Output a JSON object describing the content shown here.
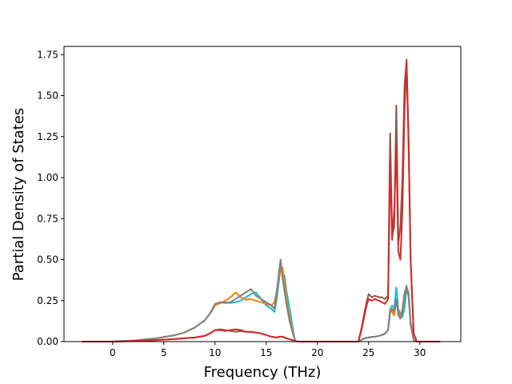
{
  "chart_data": {
    "type": "line",
    "title": "",
    "xlabel": "Frequency (THz)",
    "ylabel": "Partial Density of States",
    "xlim": [
      -4.75,
      34
    ],
    "ylim": [
      0,
      1.8
    ],
    "xticks": [
      0,
      5,
      10,
      15,
      20,
      25,
      30
    ],
    "yticks": [
      0.0,
      0.25,
      0.5,
      0.75,
      1.0,
      1.25,
      1.5,
      1.75
    ],
    "ytick_labels": [
      "0.00",
      "0.25",
      "0.50",
      "0.75",
      "1.00",
      "1.25",
      "1.50",
      "1.75"
    ],
    "grid": false,
    "legend": "none",
    "series": [
      {
        "color": "#17becf",
        "x": [
          -3,
          0,
          2,
          4,
          6,
          7,
          8,
          9,
          9.5,
          10,
          10.5,
          11,
          11.5,
          12,
          12.5,
          13,
          13.5,
          14,
          14.5,
          15,
          15.5,
          15.8,
          16,
          16.2,
          16.4,
          16.6,
          16.8,
          17,
          17.3,
          17.6,
          17.8,
          18,
          24,
          24.3,
          24.6,
          25,
          25.3,
          25.6,
          26,
          26.3,
          26.6,
          26.9,
          27.1,
          27.3,
          27.5,
          27.7,
          27.9,
          28.1,
          28.3,
          28.5,
          28.7,
          28.9,
          29.1,
          29.4,
          29.7,
          30,
          32
        ],
        "y": [
          0,
          0,
          0.006,
          0.018,
          0.038,
          0.055,
          0.085,
          0.13,
          0.17,
          0.225,
          0.235,
          0.24,
          0.235,
          0.24,
          0.25,
          0.27,
          0.29,
          0.3,
          0.26,
          0.22,
          0.2,
          0.18,
          0.25,
          0.35,
          0.45,
          0.42,
          0.4,
          0.3,
          0.2,
          0.08,
          0.01,
          0,
          0,
          0.01,
          0.02,
          0.025,
          0.028,
          0.03,
          0.035,
          0.04,
          0.05,
          0.07,
          0.2,
          0.22,
          0.2,
          0.33,
          0.2,
          0.17,
          0.15,
          0.2,
          0.32,
          0.28,
          0.1,
          0.01,
          0,
          0,
          0
        ]
      },
      {
        "color": "#ff7f0e",
        "x": [
          -3,
          0,
          2,
          4,
          6,
          7,
          8,
          9,
          9.5,
          10,
          10.5,
          11,
          11.5,
          12,
          12.5,
          13,
          13.5,
          14,
          14.5,
          15,
          15.5,
          15.8,
          16,
          16.2,
          16.4,
          16.6,
          16.8,
          17,
          17.3,
          17.6,
          17.8,
          18,
          24,
          24.3,
          24.6,
          25,
          25.3,
          25.6,
          26,
          26.3,
          26.6,
          26.9,
          27.1,
          27.3,
          27.5,
          27.7,
          27.9,
          28.1,
          28.3,
          28.5,
          28.7,
          28.9,
          29.1,
          29.4,
          29.7,
          30,
          32
        ],
        "y": [
          0,
          0,
          0.006,
          0.018,
          0.038,
          0.055,
          0.085,
          0.13,
          0.17,
          0.22,
          0.235,
          0.25,
          0.27,
          0.3,
          0.27,
          0.255,
          0.26,
          0.25,
          0.24,
          0.23,
          0.22,
          0.24,
          0.3,
          0.38,
          0.43,
          0.45,
          0.35,
          0.25,
          0.15,
          0.06,
          0.01,
          0,
          0,
          0.01,
          0.02,
          0.025,
          0.028,
          0.03,
          0.035,
          0.04,
          0.05,
          0.07,
          0.2,
          0.18,
          0.16,
          0.25,
          0.18,
          0.15,
          0.2,
          0.3,
          0.33,
          0.3,
          0.12,
          0.01,
          0,
          0,
          0
        ]
      },
      {
        "color": "#7f7f7f",
        "x": [
          -3,
          0,
          2,
          4,
          6,
          7,
          8,
          9,
          9.5,
          10,
          10.5,
          11,
          11.5,
          12,
          12.5,
          13,
          13.5,
          14,
          14.5,
          15,
          15.5,
          15.8,
          16,
          16.2,
          16.4,
          16.6,
          16.8,
          17,
          17.3,
          17.6,
          17.8,
          18,
          24,
          24.3,
          24.6,
          25,
          25.3,
          25.6,
          26,
          26.3,
          26.6,
          26.9,
          27.1,
          27.3,
          27.5,
          27.7,
          27.9,
          28.1,
          28.3,
          28.5,
          28.7,
          28.9,
          29.1,
          29.4,
          29.7,
          30,
          32
        ],
        "y": [
          0,
          0,
          0.006,
          0.018,
          0.038,
          0.055,
          0.085,
          0.13,
          0.17,
          0.23,
          0.24,
          0.235,
          0.24,
          0.26,
          0.28,
          0.3,
          0.32,
          0.28,
          0.26,
          0.24,
          0.22,
          0.2,
          0.28,
          0.4,
          0.5,
          0.38,
          0.3,
          0.22,
          0.12,
          0.05,
          0.01,
          0,
          0,
          0.01,
          0.02,
          0.025,
          0.028,
          0.03,
          0.035,
          0.04,
          0.05,
          0.07,
          0.18,
          0.2,
          0.18,
          0.26,
          0.16,
          0.14,
          0.18,
          0.28,
          0.34,
          0.28,
          0.11,
          0.01,
          0,
          0,
          0
        ]
      },
      {
        "color": "#8c564b",
        "x": [
          -3,
          0,
          3,
          6,
          8,
          9,
          9.5,
          10,
          10.5,
          11,
          11.5,
          12,
          12.5,
          13,
          13.5,
          14,
          14.5,
          15,
          15.5,
          16,
          16.3,
          16.6,
          17,
          17.5,
          18,
          24,
          24.3,
          24.6,
          24.8,
          25,
          25.3,
          25.6,
          26,
          26.3,
          26.6,
          26.9,
          27.1,
          27.3,
          27.5,
          27.7,
          27.9,
          28.1,
          28.3,
          28.5,
          28.7,
          28.9,
          29.1,
          29.4,
          29.7,
          30,
          32
        ],
        "y": [
          0,
          0,
          0.005,
          0.015,
          0.025,
          0.035,
          0.05,
          0.07,
          0.075,
          0.07,
          0.065,
          0.06,
          0.065,
          0.06,
          0.06,
          0.055,
          0.05,
          0.04,
          0.03,
          0.025,
          0.03,
          0.03,
          0.02,
          0.01,
          0,
          0,
          0.08,
          0.18,
          0.24,
          0.29,
          0.27,
          0.28,
          0.27,
          0.27,
          0.26,
          0.28,
          1.27,
          0.65,
          0.7,
          1.44,
          0.6,
          0.7,
          1.0,
          1.55,
          1.72,
          1.2,
          0.5,
          0.05,
          0,
          0,
          0
        ]
      },
      {
        "color": "#d62728",
        "x": [
          -3,
          0,
          3,
          6,
          8,
          9,
          9.5,
          10,
          10.5,
          11,
          11.5,
          12,
          12.5,
          13,
          13.5,
          14,
          14.5,
          15,
          15.5,
          16,
          16.3,
          16.6,
          17,
          17.5,
          18,
          24,
          24.3,
          24.6,
          24.8,
          25,
          25.3,
          25.6,
          26,
          26.3,
          26.6,
          26.9,
          27.1,
          27.3,
          27.5,
          27.7,
          27.9,
          28.1,
          28.3,
          28.5,
          28.7,
          28.9,
          29.1,
          29.4,
          29.7,
          30,
          32
        ],
        "y": [
          0,
          0,
          0.005,
          0.015,
          0.025,
          0.035,
          0.05,
          0.07,
          0.07,
          0.065,
          0.07,
          0.075,
          0.07,
          0.06,
          0.06,
          0.055,
          0.05,
          0.04,
          0.03,
          0.025,
          0.03,
          0.03,
          0.02,
          0.01,
          0,
          0,
          0.07,
          0.16,
          0.22,
          0.26,
          0.25,
          0.26,
          0.25,
          0.24,
          0.23,
          0.26,
          1.1,
          0.62,
          0.8,
          1.2,
          0.55,
          0.5,
          0.8,
          1.4,
          1.7,
          1.25,
          0.5,
          0.05,
          0,
          0,
          0
        ]
      }
    ]
  }
}
